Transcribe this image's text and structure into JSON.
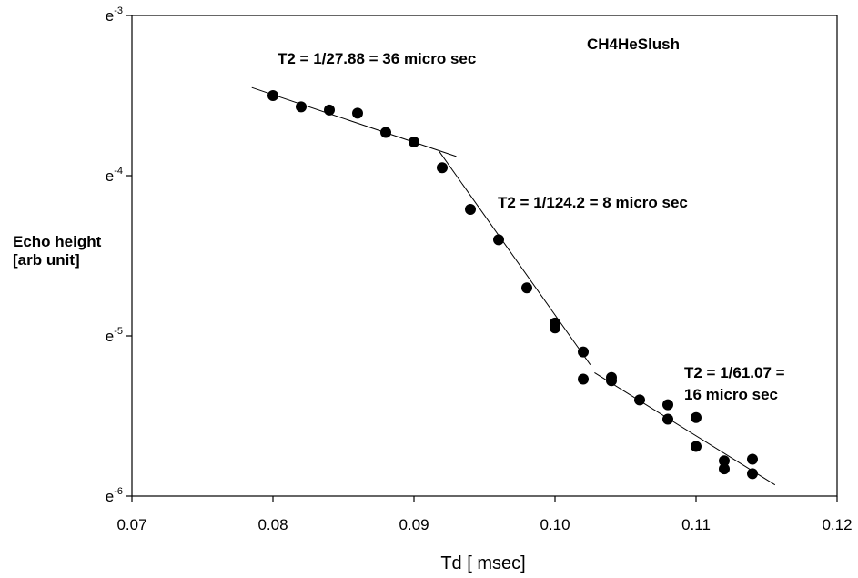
{
  "chart_data": {
    "type": "scatter",
    "xlabel": "Td [ msec]",
    "ylabel_lines": [
      "Echo height",
      "[arb unit]"
    ],
    "legend_label": "CH4HeSlush",
    "x_ticks": [
      "0.07",
      "0.08",
      "0.09",
      "0.10",
      "0.11",
      "0.12"
    ],
    "x_tick_values": [
      0.07,
      0.08,
      0.09,
      0.1,
      0.11,
      0.12
    ],
    "xlim": [
      0.07,
      0.12
    ],
    "y_scale": "log (base e)",
    "y_ticks": [
      {
        "base": "e",
        "exp": "-3",
        "value": -3
      },
      {
        "base": "e",
        "exp": "-4",
        "value": -4
      },
      {
        "base": "e",
        "exp": "-5",
        "value": -5
      },
      {
        "base": "e",
        "exp": "-6",
        "value": -6
      }
    ],
    "ylim_ln": [
      -6,
      -3
    ],
    "points_ln": [
      [
        0.08,
        -3.5
      ],
      [
        0.082,
        -3.57
      ],
      [
        0.084,
        -3.59
      ],
      [
        0.086,
        -3.61
      ],
      [
        0.088,
        -3.73
      ],
      [
        0.09,
        -3.79
      ],
      [
        0.092,
        -3.95
      ],
      [
        0.094,
        -4.21
      ],
      [
        0.096,
        -4.4
      ],
      [
        0.098,
        -4.7
      ],
      [
        0.1,
        -4.92
      ],
      [
        0.1,
        -4.95
      ],
      [
        0.102,
        -5.1
      ],
      [
        0.102,
        -5.27
      ],
      [
        0.104,
        -5.26
      ],
      [
        0.104,
        -5.28
      ],
      [
        0.106,
        -5.4
      ],
      [
        0.108,
        -5.43
      ],
      [
        0.108,
        -5.52
      ],
      [
        0.11,
        -5.51
      ],
      [
        0.11,
        -5.69
      ],
      [
        0.112,
        -5.78
      ],
      [
        0.112,
        -5.83
      ],
      [
        0.114,
        -5.77
      ],
      [
        0.114,
        -5.86
      ]
    ],
    "fit_lines": [
      {
        "x": [
          0.0785,
          0.093
        ],
        "y_ln": [
          -3.45,
          -3.88
        ]
      },
      {
        "x": [
          0.0918,
          0.1025
        ],
        "y_ln": [
          -3.85,
          -5.18
        ]
      },
      {
        "x": [
          0.1028,
          0.1156
        ],
        "y_ln": [
          -5.23,
          -5.93
        ]
      }
    ],
    "annotations": [
      "T2 = 1/27.88 = 36 micro sec",
      "T2 = 1/124.2 = 8 micro sec",
      "T2 = 1/61.07 =",
      "16 micro sec"
    ]
  }
}
